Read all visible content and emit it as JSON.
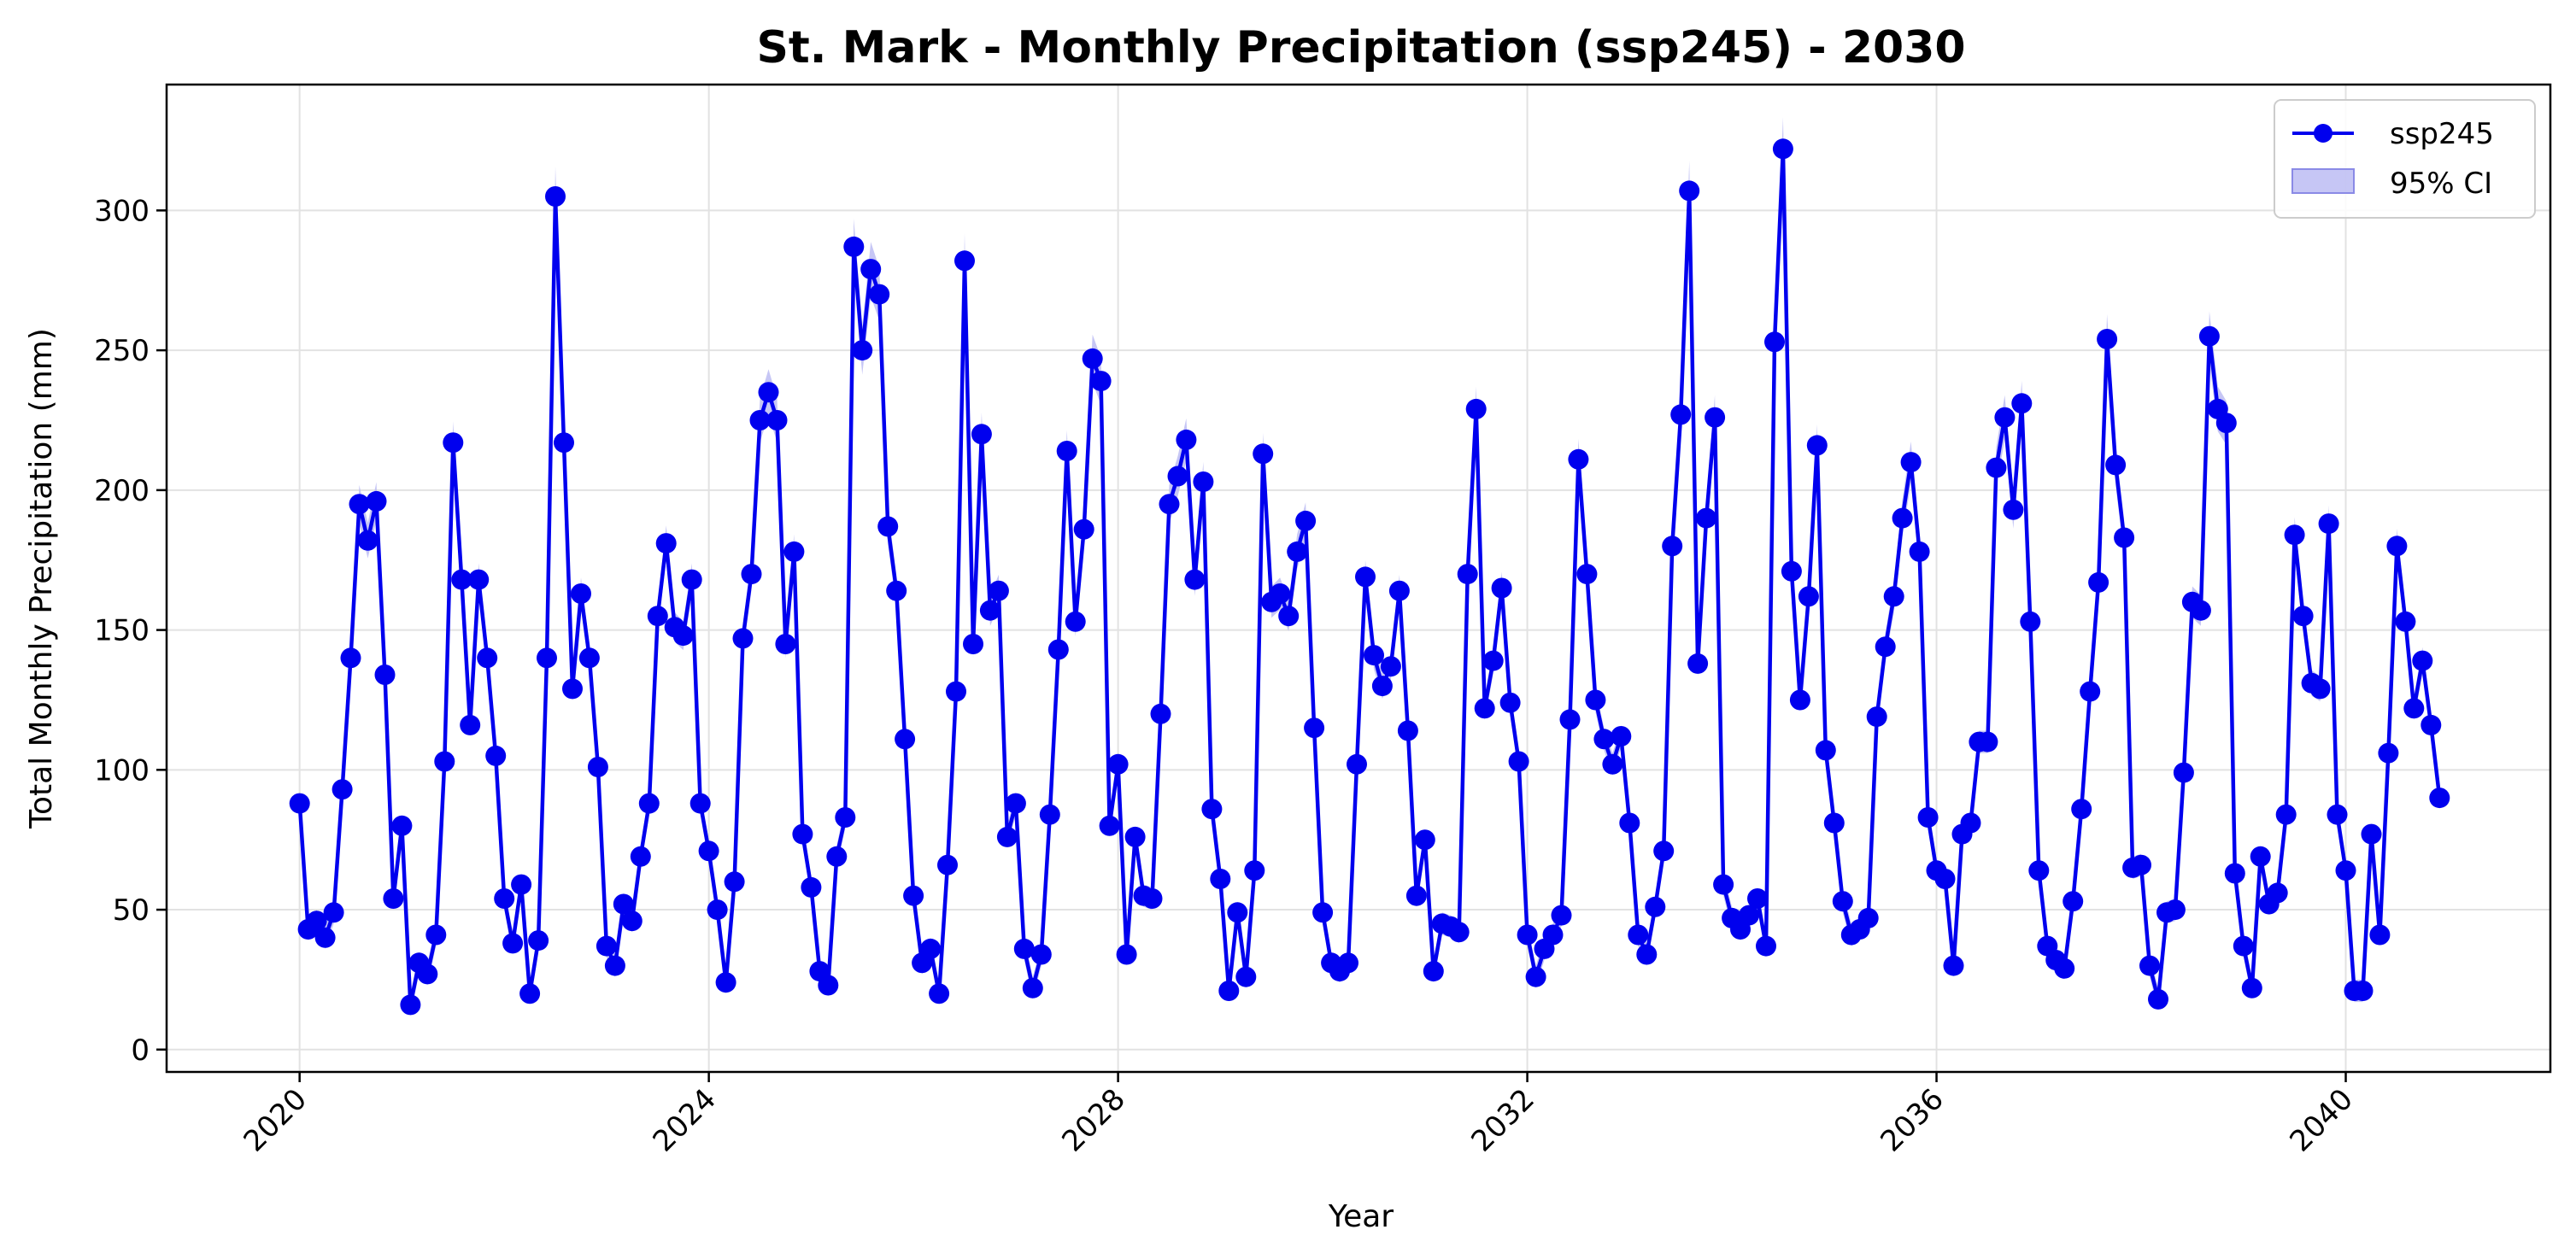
{
  "chart_data": {
    "type": "line",
    "title": "St. Mark - Monthly Precipitation (ssp245) - 2030",
    "xlabel": "Year",
    "ylabel": "Total Monthly Precipitation (mm)",
    "xlim": [
      2018.7,
      2042.0
    ],
    "ylim": [
      -8,
      345
    ],
    "x_ticks": [
      2020,
      2024,
      2028,
      2032,
      2036,
      2040
    ],
    "x_tick_labels": [
      "2020",
      "2024",
      "2028",
      "2032",
      "2036",
      "2040"
    ],
    "y_ticks": [
      0,
      50,
      100,
      150,
      200,
      250,
      300
    ],
    "y_tick_labels": [
      "0",
      "50",
      "100",
      "150",
      "200",
      "250",
      "300"
    ],
    "grid": true,
    "legend_position": "top-right",
    "colors": {
      "line": "#0000ee",
      "band": "#b8b8f2"
    },
    "x_start": "2020-01",
    "x_step": "1 month",
    "series": [
      {
        "name": "ssp245",
        "legend_label": "ssp245",
        "ci_label": "95% CI",
        "values": [
          88,
          43,
          46,
          40,
          49,
          93,
          140,
          195,
          182,
          196,
          134,
          54,
          80,
          16,
          31,
          27,
          41,
          103,
          217,
          168,
          116,
          168,
          140,
          105,
          54,
          38,
          59,
          20,
          39,
          140,
          305,
          217,
          129,
          163,
          140,
          101,
          37,
          30,
          52,
          46,
          69,
          88,
          155,
          181,
          151,
          148,
          168,
          88,
          71,
          50,
          24,
          60,
          147,
          170,
          225,
          235,
          225,
          145,
          178,
          77,
          58,
          28,
          23,
          69,
          83,
          287,
          250,
          279,
          270,
          187,
          164,
          111,
          55,
          31,
          36,
          20,
          66,
          128,
          282,
          145,
          220,
          157,
          164,
          76,
          88,
          36,
          22,
          34,
          84,
          143,
          214,
          153,
          186,
          247,
          239,
          80,
          102,
          34,
          76,
          55,
          54,
          120,
          195,
          205,
          218,
          168,
          203,
          86,
          61,
          21,
          49,
          26,
          64,
          213,
          160,
          163,
          155,
          178,
          189,
          115,
          49,
          31,
          28,
          31,
          102,
          169,
          141,
          130,
          137,
          164,
          114,
          55,
          75,
          28,
          45,
          44,
          42,
          170,
          229,
          122,
          139,
          165,
          124,
          103,
          41,
          26,
          36,
          41,
          48,
          118,
          211,
          170,
          125,
          111,
          102,
          112,
          81,
          41,
          34,
          51,
          71,
          180,
          227,
          307,
          138,
          190,
          226,
          59,
          47,
          43,
          48,
          54,
          37,
          253,
          322,
          171,
          125,
          162,
          216,
          107,
          81,
          53,
          41,
          43,
          47,
          119,
          144,
          162,
          190,
          210,
          178,
          83,
          64,
          61,
          30,
          77,
          81,
          110,
          110,
          208,
          226,
          193,
          231,
          153,
          64,
          37,
          32,
          29,
          53,
          86,
          128,
          167,
          254,
          209,
          183,
          65,
          66,
          30,
          18,
          49,
          50,
          99,
          160,
          157,
          255,
          229,
          224,
          63,
          37,
          22,
          69,
          52,
          56,
          84,
          184,
          155,
          131,
          129,
          188,
          84,
          64,
          21,
          21,
          77,
          41,
          106,
          180,
          153,
          122,
          139,
          116,
          90
        ]
      }
    ]
  }
}
